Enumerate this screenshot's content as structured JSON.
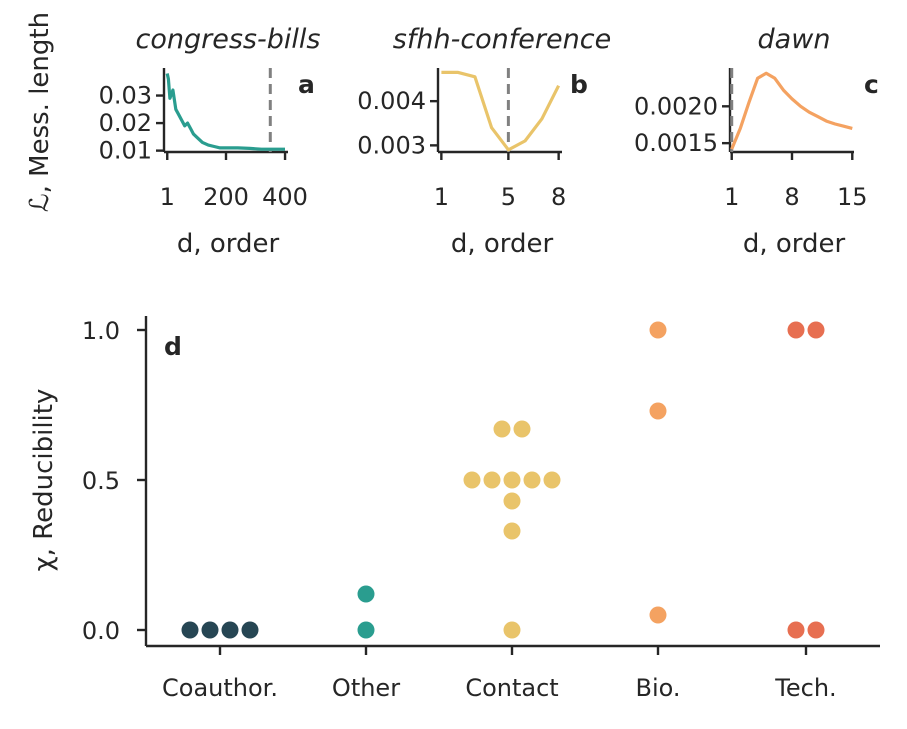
{
  "colors": {
    "coauthor": "#264653",
    "other": "#2a9d8f",
    "contact": "#e9c46a",
    "bio": "#f4a261",
    "tech": "#e76f51",
    "dash": "#808080",
    "axis": "#262626"
  },
  "chart_data": [
    {
      "type": "line",
      "panel": "a",
      "title": "congress-bills",
      "xlabel": "d, order",
      "ylabel": "ℒ, Mess. length",
      "x_ticks": [
        "1",
        "200",
        "400"
      ],
      "y_ticks": [
        "0.01",
        "0.02",
        "0.03"
      ],
      "xlim": [
        -10,
        410
      ],
      "ylim": [
        0.0095,
        0.04
      ],
      "x": [
        1,
        5,
        10,
        20,
        30,
        40,
        50,
        60,
        70,
        80,
        90,
        100,
        120,
        140,
        160,
        180,
        200,
        240,
        280,
        320,
        360,
        400
      ],
      "y": [
        0.038,
        0.036,
        0.029,
        0.032,
        0.025,
        0.023,
        0.021,
        0.019,
        0.02,
        0.018,
        0.016,
        0.015,
        0.013,
        0.012,
        0.0115,
        0.011,
        0.011,
        0.011,
        0.0108,
        0.0105,
        0.0105,
        0.0105
      ],
      "vline": 350,
      "color": "#2a9d8f"
    },
    {
      "type": "line",
      "panel": "b",
      "title": "sfhh-conference",
      "xlabel": "d, order",
      "ylabel": "",
      "x_ticks": [
        "1",
        "5",
        "8"
      ],
      "y_ticks": [
        "0.003",
        "0.004"
      ],
      "xlim": [
        0.8,
        8.2
      ],
      "ylim": [
        0.00285,
        0.00475
      ],
      "x": [
        1,
        2,
        3,
        4,
        5,
        6,
        7,
        8
      ],
      "y": [
        0.00465,
        0.00465,
        0.00455,
        0.0034,
        0.0029,
        0.0031,
        0.0036,
        0.00435
      ],
      "vline": 5,
      "color": "#e9c46a"
    },
    {
      "type": "line",
      "panel": "c",
      "title": "dawn",
      "xlabel": "d, order",
      "ylabel": "",
      "x_ticks": [
        "1",
        "8",
        "15"
      ],
      "y_ticks": [
        "0.0015",
        "0.0020"
      ],
      "xlim": [
        0.8,
        15.2
      ],
      "ylim": [
        0.00138,
        0.00252
      ],
      "x": [
        1,
        2,
        3,
        4,
        5,
        6,
        7,
        8,
        9,
        10,
        11,
        12,
        13,
        14,
        15
      ],
      "y": [
        0.00142,
        0.0017,
        0.00205,
        0.00238,
        0.00245,
        0.00238,
        0.00222,
        0.0021,
        0.002,
        0.00192,
        0.00186,
        0.0018,
        0.00176,
        0.00173,
        0.0017
      ],
      "vline": 1,
      "color": "#f4a261"
    },
    {
      "type": "scatter",
      "panel": "d",
      "xlabel": "",
      "ylabel": "χ, Reducibility",
      "categories": [
        "Coauthor.",
        "Other",
        "Contact",
        "Bio.",
        "Tech."
      ],
      "y_ticks": [
        "0.0",
        "0.5",
        "1.0"
      ],
      "ylim": [
        -0.05,
        1.05
      ],
      "series": [
        {
          "category": "Coauthor.",
          "values": [
            0,
            0,
            0,
            0
          ],
          "color": "#264653"
        },
        {
          "category": "Other",
          "values": [
            0,
            0.12
          ],
          "color": "#2a9d8f"
        },
        {
          "category": "Contact",
          "values": [
            0,
            0.33,
            0.43,
            0.5,
            0.5,
            0.5,
            0.5,
            0.5,
            0.67,
            0.67
          ],
          "color": "#e9c46a"
        },
        {
          "category": "Bio.",
          "values": [
            0.05,
            0.73,
            1.0
          ],
          "color": "#f4a261"
        },
        {
          "category": "Tech.",
          "values": [
            0,
            0,
            1.0,
            1.0
          ],
          "color": "#e76f51"
        }
      ]
    }
  ]
}
